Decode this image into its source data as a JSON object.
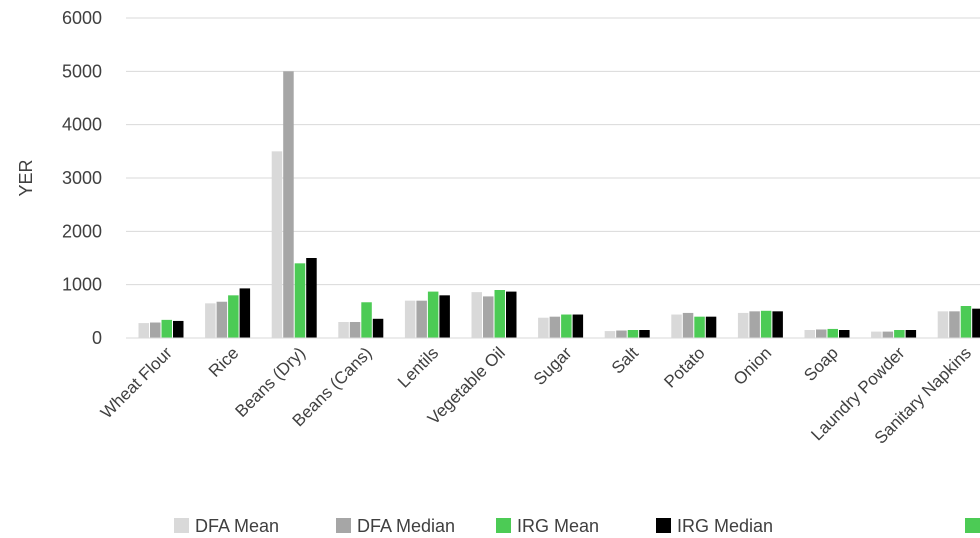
{
  "chart_data": {
    "type": "bar",
    "title": "",
    "xlabel": "",
    "ylabel": "YER",
    "ylim": [
      0,
      6000
    ],
    "yticks": [
      0,
      1000,
      2000,
      3000,
      4000,
      5000,
      6000
    ],
    "grid": true,
    "legend_position": "bottom",
    "categories": [
      "Wheat Flour",
      "Rice",
      "Beans (Dry)",
      "Beans (Cans)",
      "Lentils",
      "Vegetable Oil",
      "Sugar",
      "Salt",
      "Potato",
      "Onion",
      "Soap",
      "Laundry Powder",
      "Sanitary Napkins"
    ],
    "series": [
      {
        "name": "DFA Mean",
        "color": "#d9d9d9",
        "values": [
          280,
          650,
          3500,
          300,
          700,
          860,
          380,
          130,
          440,
          470,
          150,
          120,
          500
        ]
      },
      {
        "name": "DFA Median",
        "color": "#a6a6a6",
        "values": [
          290,
          680,
          5000,
          300,
          700,
          780,
          400,
          140,
          470,
          500,
          160,
          120,
          500
        ]
      },
      {
        "name": "IRG Mean",
        "color": "#4ccb55",
        "values": [
          340,
          800,
          1400,
          670,
          870,
          900,
          440,
          150,
          400,
          510,
          170,
          150,
          600
        ]
      },
      {
        "name": "IRG Median",
        "color": "#000000",
        "values": [
          320,
          930,
          1500,
          360,
          800,
          870,
          440,
          150,
          400,
          500,
          150,
          150,
          550
        ]
      }
    ]
  }
}
